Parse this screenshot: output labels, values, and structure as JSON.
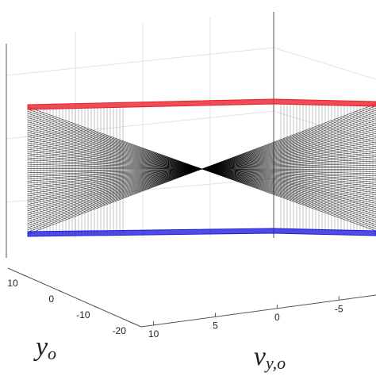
{
  "chart_data": {
    "type": "line3d",
    "xlabel": "y",
    "xlabel_sub": "o",
    "ylabel": "v",
    "ylabel_sub": "y,o",
    "xlim": [
      15,
      -22
    ],
    "xticks": [
      10,
      0,
      -10,
      -20
    ],
    "ylim": [
      11,
      -8
    ],
    "yticks": [
      10,
      5,
      0,
      -5
    ],
    "top_color": "#e8202a",
    "bottom_color": "#2020e0",
    "line_color": "#000000"
  }
}
